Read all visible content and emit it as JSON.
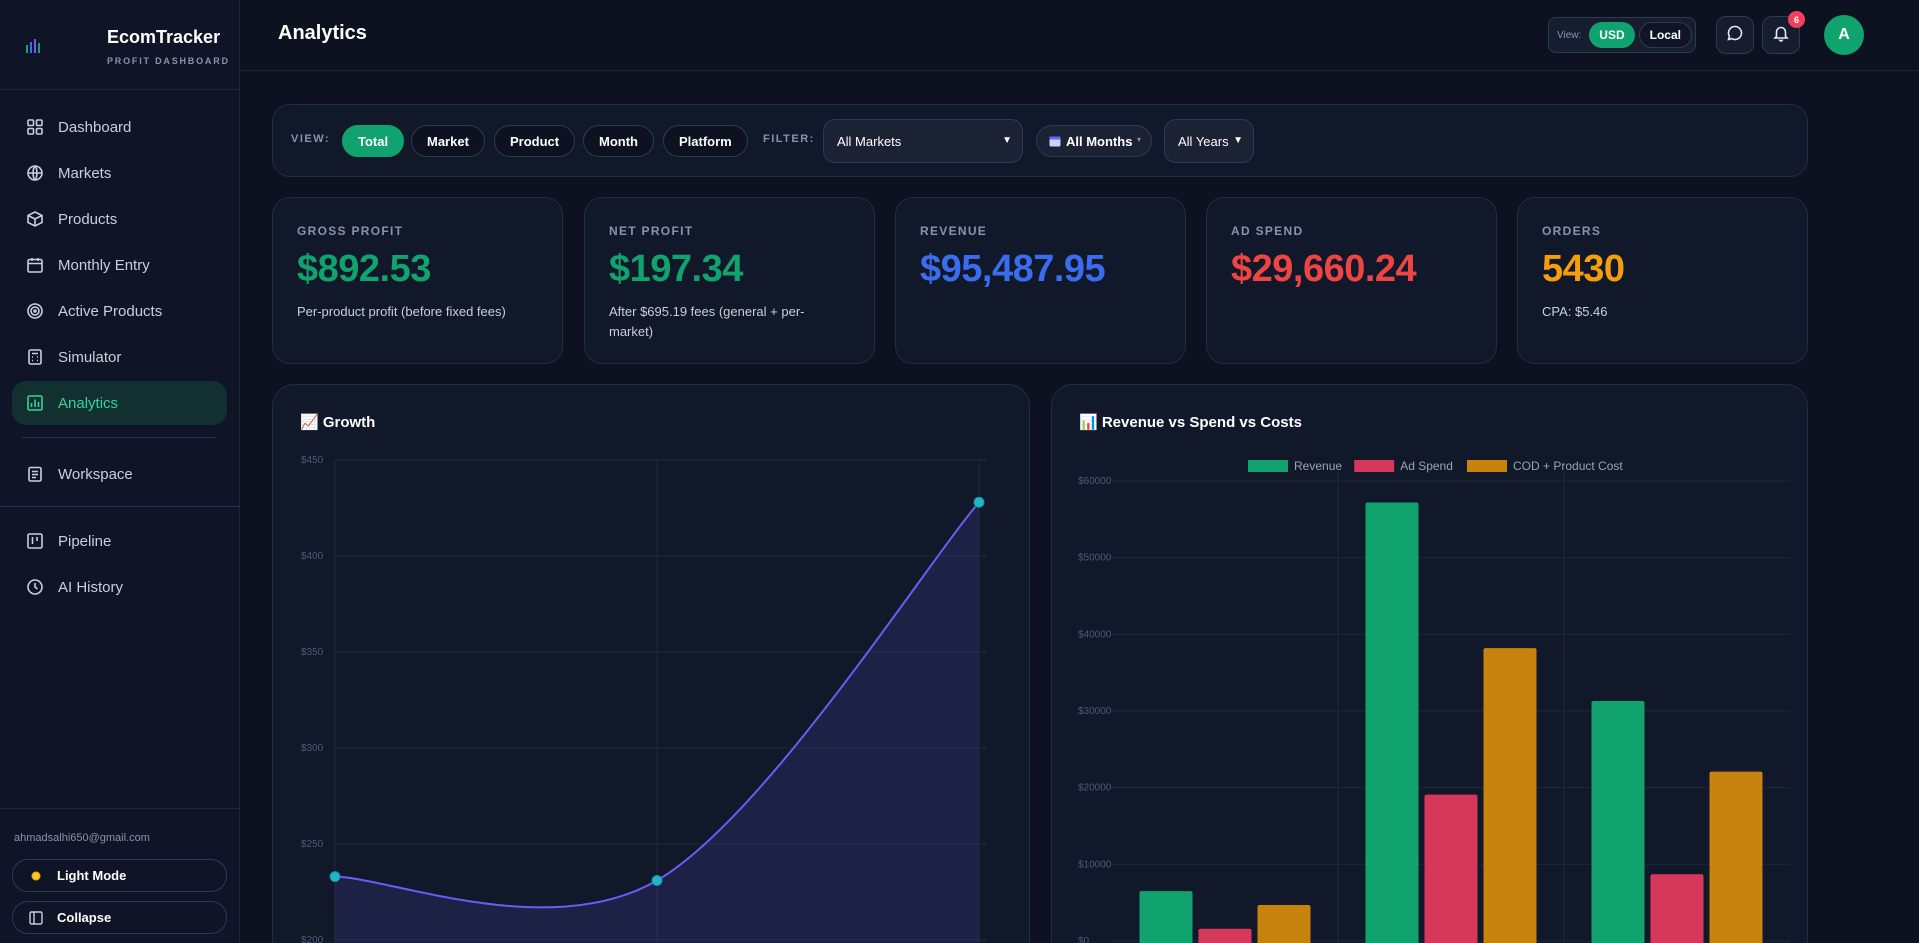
{
  "brand": {
    "title": "EcomTracker",
    "subtitle": "PROFIT DASHBOARD"
  },
  "nav": [
    {
      "label": "Dashboard",
      "icon": "grid-icon"
    },
    {
      "label": "Markets",
      "icon": "globe-icon"
    },
    {
      "label": "Products",
      "icon": "box-icon"
    },
    {
      "label": "Monthly Entry",
      "icon": "calendar-icon"
    },
    {
      "label": "Active Products",
      "icon": "target-icon"
    },
    {
      "label": "Simulator",
      "icon": "calculator-icon"
    },
    {
      "label": "Analytics",
      "icon": "bar-chart-icon",
      "active": true
    },
    {
      "label": "Workspace",
      "icon": "clipboard-icon"
    },
    {
      "label": "Pipeline",
      "icon": "kanban-icon"
    },
    {
      "label": "AI History",
      "icon": "clock-icon"
    }
  ],
  "footer": {
    "email": "ahmadsalhi650@gmail.com",
    "light_mode": "Light Mode",
    "collapse": "Collapse"
  },
  "topbar": {
    "title": "Analytics",
    "view_label": "View:",
    "currency_usd": "USD",
    "currency_local": "Local",
    "notification_count": "6",
    "avatar_letter": "A"
  },
  "filters": {
    "view_label": "VIEW:",
    "views": [
      "Total",
      "Market",
      "Product",
      "Month",
      "Platform"
    ],
    "active_view": "Total",
    "filter_label": "FILTER:",
    "market_select": "All Markets",
    "months_select": "All Months",
    "years_select": "All Years"
  },
  "stats": [
    {
      "label": "GROSS PROFIT",
      "value": "$892.53",
      "sub": "Per-product profit (before fixed fees)",
      "color": "#10a36d"
    },
    {
      "label": "NET PROFIT",
      "value": "$197.34",
      "sub": "After $695.19 fees (general + per-market)",
      "color": "#10a36d"
    },
    {
      "label": "REVENUE",
      "value": "$95,487.95",
      "sub": "",
      "color": "#3b6cf0"
    },
    {
      "label": "AD SPEND",
      "value": "$29,660.24",
      "sub": "",
      "color": "#ef4444"
    },
    {
      "label": "ORDERS",
      "value": "5430",
      "sub": "CPA: $5.46",
      "color": "#f59e0b"
    }
  ],
  "chart_data": [
    {
      "type": "line",
      "title": "📈 Growth",
      "x": [
        "",
        "",
        ""
      ],
      "series": [
        {
          "values": [
            233,
            231,
            428
          ]
        }
      ],
      "yticks": [
        "$200",
        "$250",
        "$300",
        "$350",
        "$400",
        "$450"
      ],
      "ylim": [
        200,
        450
      ],
      "grid": true,
      "line_color": "#6b5cf6",
      "point_color": "#22b5c8"
    },
    {
      "type": "bar",
      "title": "📊 Revenue vs Spend vs Costs",
      "categories": [
        "",
        "",
        ""
      ],
      "series": [
        {
          "name": "Revenue",
          "values": [
            6500,
            57200,
            31300
          ],
          "color": "#10a36d"
        },
        {
          "name": "Ad Spend",
          "values": [
            1600,
            19100,
            8700
          ],
          "color": "#d6385b"
        },
        {
          "name": "COD + Product Cost",
          "values": [
            4700,
            38200,
            22100
          ],
          "color": "#c8830f"
        }
      ],
      "yticks": [
        "$0",
        "$10000",
        "$20000",
        "$30000",
        "$40000",
        "$50000",
        "$60000"
      ],
      "ylim": [
        0,
        60000
      ],
      "legend": "top-center",
      "grid": true
    }
  ]
}
